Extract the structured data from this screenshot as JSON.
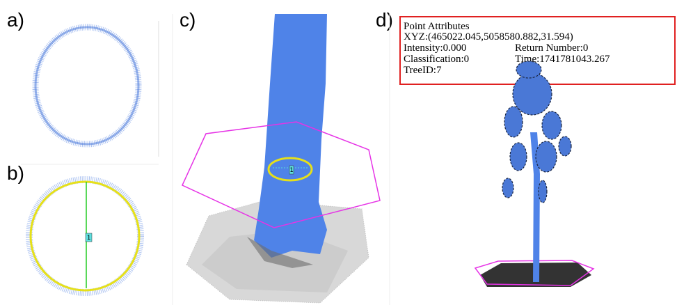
{
  "panels": [
    {
      "label": "a)"
    },
    {
      "label": "b)",
      "marker": "1"
    },
    {
      "label": "c)",
      "marker": "1"
    },
    {
      "label": "d)"
    }
  ],
  "point_attributes": {
    "title": "Point Attributes",
    "xyz": "XYZ:(465022.045,5058580.882,31.594)",
    "intensity": "Intensity:0.000",
    "return_number": "Return Number:0",
    "classification": "Classification:0",
    "time": "Time:1741781043.267",
    "tree_id": "TreeID:7"
  }
}
